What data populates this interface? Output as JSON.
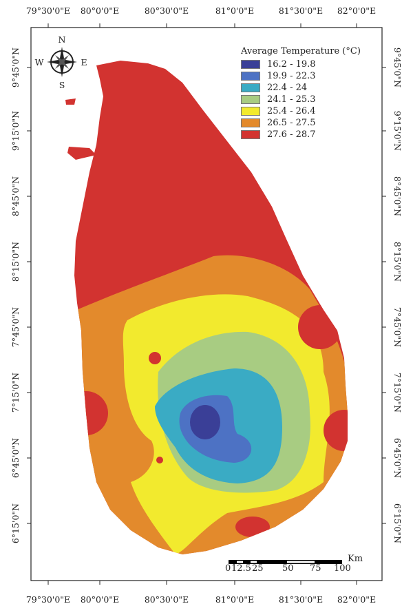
{
  "map": {
    "legend": {
      "title": "Average Temperature (°C)",
      "classes": [
        {
          "label": "16.2 - 19.8",
          "color": "#3a3f97"
        },
        {
          "label": "19.9 - 22.3",
          "color": "#4d72c4"
        },
        {
          "label": "22.4 - 24",
          "color": "#3aabc4"
        },
        {
          "label": "24.1 - 25.3",
          "color": "#a8cc82"
        },
        {
          "label": "25.4 - 26.4",
          "color": "#f2ea2e"
        },
        {
          "label": "26.5 - 27.5",
          "color": "#e38a2c"
        },
        {
          "label": "27.6 - 28.7",
          "color": "#d23330"
        }
      ]
    },
    "longitude_labels": [
      "79°30'0\"E",
      "80°0'0\"E",
      "80°30'0\"E",
      "81°0'0\"E",
      "81°30'0\"E",
      "82°0'0\"E"
    ],
    "latitude_labels": [
      "9°45'0\"N",
      "9°15'0\"N",
      "8°45'0\"N",
      "8°15'0\"N",
      "7°45'0\"N",
      "7°15'0\"N",
      "6°45'0\"N",
      "6°15'0\"N"
    ],
    "compass": {
      "n": "N",
      "s": "S",
      "e": "E",
      "w": "W",
      "icon": "compass-rose-icon"
    },
    "scale_bar": {
      "unit": "Km",
      "labels": [
        "0",
        "12.5",
        "25",
        "50",
        "75",
        "100"
      ]
    }
  }
}
